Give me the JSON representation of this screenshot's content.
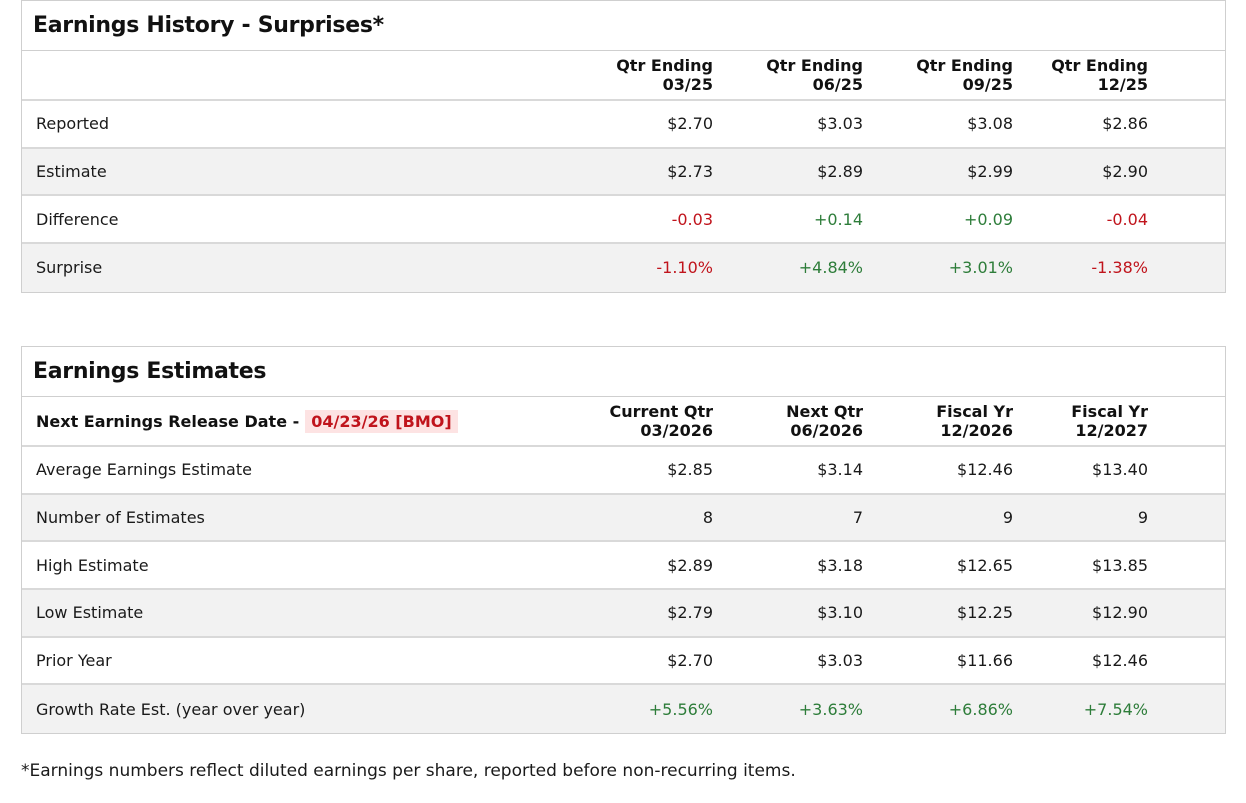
{
  "history": {
    "title": "Earnings History - Surprises*",
    "columns": [
      {
        "line1": "Qtr Ending",
        "line2": "03/25"
      },
      {
        "line1": "Qtr Ending",
        "line2": "06/25"
      },
      {
        "line1": "Qtr Ending",
        "line2": "09/25"
      },
      {
        "line1": "Qtr Ending",
        "line2": "12/25"
      }
    ],
    "rows": [
      {
        "label": "Reported",
        "values": [
          "$2.70",
          "$3.03",
          "$3.08",
          "$2.86"
        ]
      },
      {
        "label": "Estimate",
        "values": [
          "$2.73",
          "$2.89",
          "$2.99",
          "$2.90"
        ]
      },
      {
        "label": "Difference",
        "values": [
          "-0.03",
          "+0.14",
          "+0.09",
          "-0.04"
        ]
      },
      {
        "label": "Surprise",
        "values": [
          "-1.10%",
          "+4.84%",
          "+3.01%",
          "-1.38%"
        ]
      }
    ]
  },
  "estimates": {
    "title": "Earnings Estimates",
    "release_label": "Next Earnings Release Date -",
    "release_date": "04/23/26 [BMO]",
    "columns": [
      {
        "line1": "Current Qtr",
        "line2": "03/2026"
      },
      {
        "line1": "Next Qtr",
        "line2": "06/2026"
      },
      {
        "line1": "Fiscal Yr",
        "line2": "12/2026"
      },
      {
        "line1": "Fiscal Yr",
        "line2": "12/2027"
      }
    ],
    "rows": [
      {
        "label": "Average Earnings Estimate",
        "values": [
          "$2.85",
          "$3.14",
          "$12.46",
          "$13.40"
        ]
      },
      {
        "label": "Number of Estimates",
        "values": [
          "8",
          "7",
          "9",
          "9"
        ]
      },
      {
        "label": "High Estimate",
        "values": [
          "$2.89",
          "$3.18",
          "$12.65",
          "$13.85"
        ]
      },
      {
        "label": "Low Estimate",
        "values": [
          "$2.79",
          "$3.10",
          "$12.25",
          "$12.90"
        ]
      },
      {
        "label": "Prior Year",
        "values": [
          "$2.70",
          "$3.03",
          "$11.66",
          "$12.46"
        ]
      },
      {
        "label": "Growth Rate Est. (year over year)",
        "values": [
          "+5.56%",
          "+3.63%",
          "+6.86%",
          "+7.54%"
        ]
      }
    ]
  },
  "footnote": "*Earnings numbers reflect diluted earnings per share, reported before non-recurring items.",
  "colors": {
    "negative": "#c0141c",
    "positive": "#2e7d3a",
    "row_shade": "#f2f2f2",
    "badge_bg": "#fde3e3"
  }
}
